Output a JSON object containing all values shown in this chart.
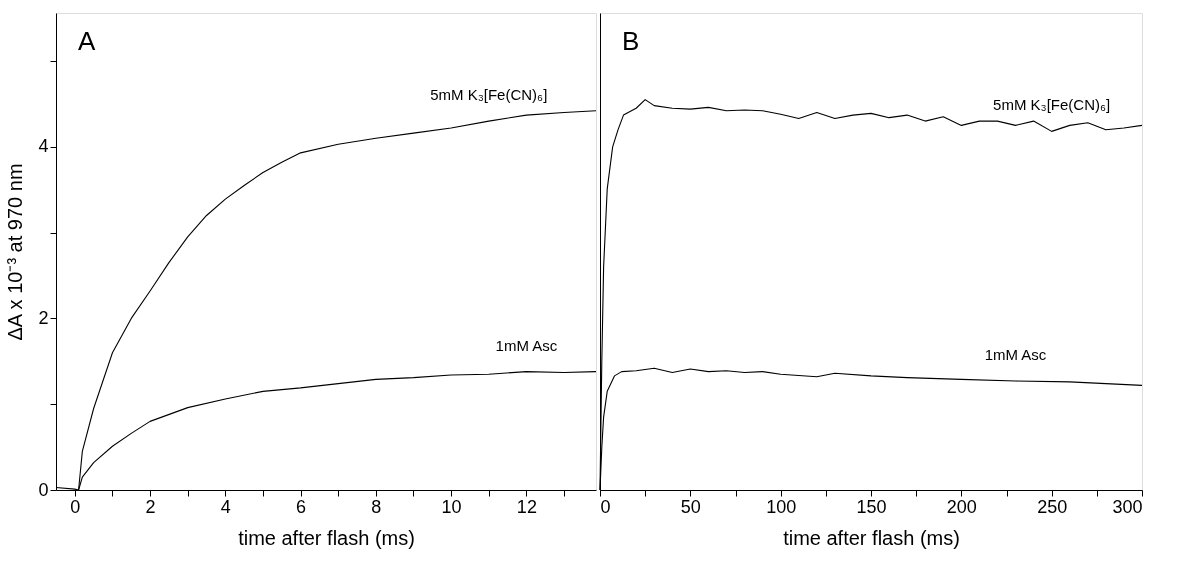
{
  "chart_data": [
    {
      "type": "line",
      "title": "A",
      "xlabel": "time after flash (ms)",
      "ylabel": "ΔA x 10⁻³ at 970 nm",
      "xlim": [
        -0.5,
        13.85
      ],
      "xticks": [
        0,
        {
          "value": 1,
          "label": null
        },
        2,
        {
          "value": 3,
          "label": null
        },
        4,
        {
          "value": 5,
          "label": null
        },
        6,
        {
          "value": 7,
          "label": null
        },
        8,
        {
          "value": 9,
          "label": null
        },
        10,
        {
          "value": 11,
          "label": null
        },
        12,
        {
          "value": 13,
          "label": null
        }
      ],
      "ylim": [
        0,
        5.56
      ],
      "yticks": [
        0,
        {
          "value": 1,
          "label": null
        },
        2,
        {
          "value": 3,
          "label": null
        },
        4,
        {
          "value": 5,
          "label": null
        }
      ],
      "series": [
        {
          "name": "5mM K₃[Fe(CN)₆]",
          "color": "#000000",
          "x": [
            -0.5,
            0,
            0.1,
            0.2,
            0.5,
            1,
            1.5,
            2,
            2.5,
            3,
            3.5,
            4,
            4.5,
            5,
            5.5,
            6,
            7,
            8,
            9,
            10,
            11,
            12,
            13,
            13.85
          ],
          "values": [
            0.03,
            0.01,
            0,
            0.45,
            0.95,
            1.6,
            2.0,
            2.32,
            2.65,
            2.95,
            3.2,
            3.39,
            3.55,
            3.7,
            3.82,
            3.93,
            4.03,
            4.1,
            4.16,
            4.22,
            4.3,
            4.37,
            4.4,
            4.42
          ]
        },
        {
          "name": "1mM Asc",
          "color": "#000000",
          "x": [
            0.1,
            0.2,
            0.5,
            1,
            1.5,
            2,
            3,
            4,
            5,
            6,
            7,
            8,
            9,
            10,
            11,
            12,
            13,
            13.85
          ],
          "values": [
            0,
            0.15,
            0.32,
            0.51,
            0.66,
            0.8,
            0.96,
            1.06,
            1.15,
            1.19,
            1.24,
            1.29,
            1.31,
            1.34,
            1.35,
            1.38,
            1.37,
            1.38
          ]
        }
      ]
    },
    {
      "type": "line",
      "title": "B",
      "xlabel": "time after flash (ms)",
      "tick_labels": "x",
      "xlim": [
        0,
        300
      ],
      "xticks": [
        0,
        {
          "value": 25,
          "label": null
        },
        50,
        {
          "value": 75,
          "label": null
        },
        100,
        {
          "value": 125,
          "label": null
        },
        150,
        {
          "value": 175,
          "label": null
        },
        200,
        {
          "value": 225,
          "label": null
        },
        250,
        {
          "value": 275,
          "label": null
        },
        300
      ],
      "ylim": [
        0,
        5.56
      ],
      "series": [
        {
          "name": "5mM K₃[Fe(CN)₆]",
          "color": "#000000",
          "x": [
            0,
            1,
            2,
            4,
            7,
            10,
            13,
            20,
            25,
            30,
            40,
            50,
            60,
            70,
            80,
            90,
            100,
            110,
            120,
            130,
            140,
            150,
            160,
            170,
            180,
            190,
            200,
            210,
            220,
            230,
            240,
            250,
            260,
            270,
            280,
            290,
            300
          ],
          "values": [
            0,
            1.5,
            2.6,
            3.51,
            4.0,
            4.2,
            4.37,
            4.45,
            4.55,
            4.48,
            4.45,
            4.44,
            4.46,
            4.42,
            4.43,
            4.42,
            4.38,
            4.33,
            4.4,
            4.33,
            4.37,
            4.39,
            4.34,
            4.37,
            4.3,
            4.35,
            4.25,
            4.3,
            4.3,
            4.25,
            4.3,
            4.18,
            4.25,
            4.28,
            4.2,
            4.22,
            4.25
          ]
        },
        {
          "name": "1mM Asc",
          "color": "#000000",
          "x": [
            0,
            1,
            2,
            4,
            8,
            12,
            20,
            30,
            40,
            50,
            60,
            70,
            80,
            90,
            100,
            120,
            130,
            150,
            170,
            200,
            230,
            260,
            280,
            300
          ],
          "values": [
            0,
            0.5,
            0.85,
            1.15,
            1.33,
            1.38,
            1.39,
            1.42,
            1.37,
            1.41,
            1.38,
            1.39,
            1.37,
            1.38,
            1.35,
            1.32,
            1.36,
            1.33,
            1.31,
            1.29,
            1.27,
            1.26,
            1.24,
            1.22
          ]
        }
      ]
    }
  ]
}
